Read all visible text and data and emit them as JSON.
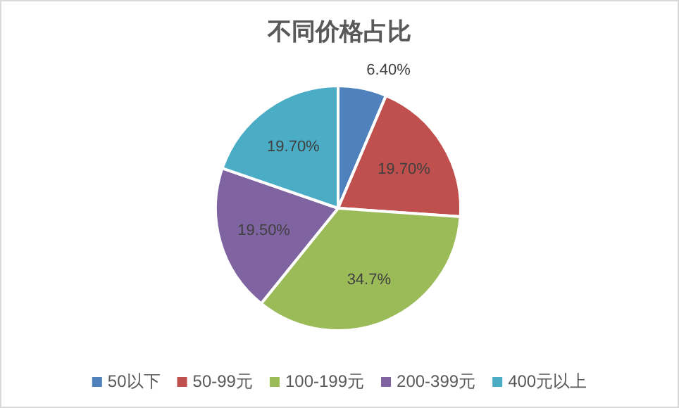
{
  "chart_data": {
    "type": "pie",
    "title": "不同价格占比",
    "categories": [
      "50以下",
      "50-99元",
      "100-199元",
      "200-399元",
      "400元以上"
    ],
    "values": [
      6.4,
      19.7,
      34.7,
      19.5,
      19.7
    ],
    "colors": [
      "#4f81bd",
      "#c0504d",
      "#9bbb59",
      "#8064a2",
      "#4bacc6"
    ],
    "value_labels": [
      "6.40%",
      "19.70%",
      "34.7%",
      "19.50%",
      "19.70%"
    ],
    "legend": "bottom"
  }
}
